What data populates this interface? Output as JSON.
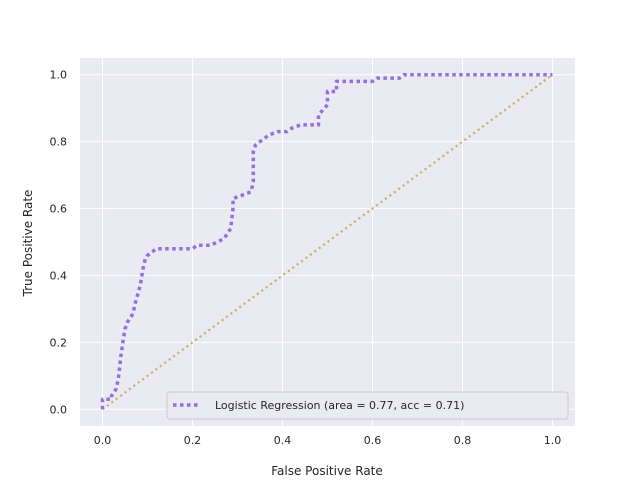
{
  "chart_data": {
    "type": "line",
    "title": "",
    "xlabel": "False Positive Rate",
    "ylabel": "True Positive Rate",
    "xlim": [
      -0.05,
      1.05
    ],
    "ylim": [
      -0.05,
      1.05
    ],
    "xticks": [
      "0.0",
      "0.2",
      "0.4",
      "0.6",
      "0.8",
      "1.0"
    ],
    "yticks": [
      "0.0",
      "0.2",
      "0.4",
      "0.6",
      "0.8",
      "1.0"
    ],
    "grid": true,
    "legend_position": "lower-right",
    "background_color": "#eaeaf2",
    "series": [
      {
        "name": "Logistic Regression (area = 0.77, acc = 0.71)",
        "color": "#9370db",
        "style": "dotted",
        "x": [
          0.0,
          0.0,
          0.02,
          0.02,
          0.03,
          0.035,
          0.04,
          0.045,
          0.05,
          0.055,
          0.065,
          0.07,
          0.075,
          0.08,
          0.085,
          0.09,
          0.095,
          0.1,
          0.11,
          0.12,
          0.15,
          0.18,
          0.2,
          0.21,
          0.24,
          0.27,
          0.285,
          0.29,
          0.29,
          0.31,
          0.33,
          0.335,
          0.335,
          0.34,
          0.35,
          0.37,
          0.39,
          0.41,
          0.42,
          0.44,
          0.46,
          0.48,
          0.48,
          0.5,
          0.5,
          0.52,
          0.52,
          0.55,
          0.6,
          0.61,
          0.65,
          0.66,
          0.67,
          0.7,
          0.75,
          0.8,
          0.85,
          0.9,
          0.95,
          1.0
        ],
        "y": [
          0.0,
          0.03,
          0.03,
          0.04,
          0.06,
          0.09,
          0.15,
          0.2,
          0.24,
          0.26,
          0.28,
          0.3,
          0.33,
          0.35,
          0.38,
          0.42,
          0.45,
          0.46,
          0.47,
          0.48,
          0.48,
          0.48,
          0.48,
          0.49,
          0.49,
          0.51,
          0.54,
          0.6,
          0.63,
          0.64,
          0.65,
          0.68,
          0.77,
          0.79,
          0.8,
          0.82,
          0.83,
          0.83,
          0.84,
          0.85,
          0.85,
          0.85,
          0.88,
          0.91,
          0.95,
          0.95,
          0.98,
          0.98,
          0.98,
          0.99,
          0.99,
          0.99,
          1.0,
          1.0,
          1.0,
          1.0,
          1.0,
          1.0,
          1.0,
          1.0
        ]
      },
      {
        "name": "",
        "color": "#c9b070",
        "style": "dotted",
        "x": [
          0.0,
          1.0
        ],
        "y": [
          0.0,
          1.0
        ]
      }
    ]
  }
}
